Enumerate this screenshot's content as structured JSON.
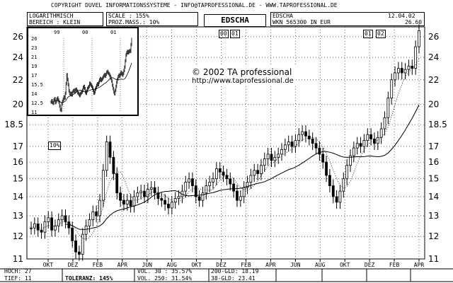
{
  "header": {
    "copyright": "COPYRIGHT  DUVEL INFORMATIONSSYSTEME - INFO@TAPROFESSIONAL.DE - WWW.TAPROFESSIONAL.DE",
    "scale_label": "LOGARITHMISCH",
    "range_label": "BEREICH : KLEIN",
    "scale_value": "SCALE : 155%",
    "prozmass": "PROZ.MASS.: 10%",
    "title": "EDSCHA",
    "name": "EDSCHA",
    "wkn": "WKN 565300   IN EUR",
    "date": "12.04.02",
    "price": "26.60"
  },
  "watermark": {
    "line1": "© 2002 TA professional",
    "line2": "http://www.taprofessional.de"
  },
  "annotation": "10%",
  "year_markers": [
    "00",
    "01",
    "01",
    "02"
  ],
  "inset": {
    "years": [
      "99",
      "00",
      "01"
    ],
    "ylabels": [
      "26",
      "23",
      "21",
      "19",
      "17",
      "15.5",
      "14",
      "12.5",
      "11"
    ]
  },
  "footer": {
    "hoch": "HOCH: 27",
    "tief": "TIEF: 11",
    "toleranz": "TOLERANZ: 145%",
    "vol30": "VOL. 30 : 35.57%",
    "vol250": "VOL. 250: 31.54%",
    "gld200": "200-GLD: 18.19",
    "gld38": "38-GLD: 23.41"
  },
  "chart_data": {
    "type": "candlestick",
    "yscale": "log",
    "ylim": [
      11,
      27
    ],
    "yticks": [
      "26",
      "24",
      "22",
      "20",
      "18.5",
      "17",
      "16",
      "15",
      "14",
      "13",
      "12",
      "11"
    ],
    "xticks": [
      "OKT",
      "DEZ",
      "FEB",
      "APR",
      "JUN",
      "AUG",
      "OKT",
      "DEZ",
      "FEB",
      "APR",
      "JUN",
      "AUG",
      "OKT",
      "DEZ",
      "FEB",
      "APR"
    ],
    "series": [
      {
        "values": [
          12.4,
          12.6,
          12.3,
          12.2,
          12.7,
          12.9,
          12.3,
          12.5,
          12.8,
          13.0,
          12.7,
          12.4,
          11.8,
          11.3,
          11.2,
          12.1,
          12.5,
          12.8,
          13.2,
          13.0,
          13.8,
          15.5,
          17.3,
          16.3,
          15.3,
          14.2,
          13.8,
          13.6,
          13.8,
          13.5,
          14.0,
          14.2,
          14.3,
          14.0,
          14.4,
          14.5,
          14.2,
          13.9,
          13.8,
          13.6,
          13.4,
          13.7,
          13.9,
          14.0,
          14.3,
          14.8,
          15.0,
          14.6,
          14.0,
          13.8,
          14.2,
          14.6,
          14.8,
          15.0,
          15.6,
          15.4,
          15.2,
          15.0,
          14.7,
          14.3,
          13.8,
          14.0,
          14.5,
          14.8,
          15.2,
          15.5,
          15.3,
          15.8,
          16.2,
          16.5,
          16.1,
          16.3,
          16.5,
          16.8,
          17.1,
          17.3,
          17.0,
          17.4,
          17.8,
          18.0,
          17.7,
          17.5,
          17.2,
          16.9,
          16.5,
          16.0,
          15.2,
          14.6,
          14.0,
          13.7,
          14.3,
          15.0,
          15.8,
          16.4,
          16.9,
          17.2,
          17.0,
          17.4,
          17.8,
          17.5,
          17.2,
          17.6,
          18.2,
          19.0,
          20.5,
          22.0,
          22.6,
          23.0,
          22.6,
          22.9,
          23.2,
          23.0,
          25.0,
          26.6
        ]
      }
    ]
  }
}
